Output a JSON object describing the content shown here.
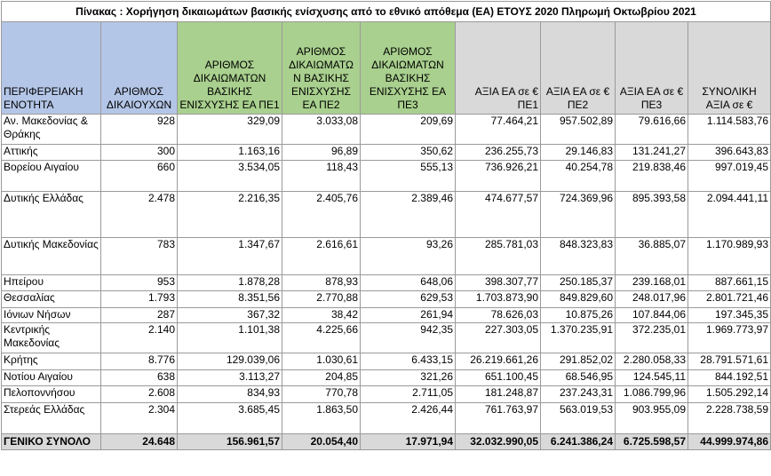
{
  "title": "Πίνακας   : Χορήγηση δικαιωμάτων βασικής ενίσχυσης από το εθνικό απόθεμα (ΕΑ) ΕΤΟΥΣ 2020 Πληρωμή Οκτωβρίου 2021",
  "headers": [
    "ΠΕΡΙΦΕΡΕΙΑΚΗ ΕΝΟΤΗΤΑ",
    "ΑΡΙΘΜΟΣ ΔΙΚΑΙΟΥΧΩΝ",
    "ΑΡΙΘΜΟΣ ΔΙΚΑΙΩΜΑΤΩΝ ΒΑΣΙΚΗΣ ΕΝΙΣΧΥΣΗΣ ΕΑ ΠΕ1",
    "ΑΡΙΘΜΟΣ ΔΙΚΑΙΩΜΑΤΩ Ν ΒΑΣΙΚΗΣ ΕΝΙΣΧΥΣΗΣ ΕΑ ΠΕ2",
    "ΑΡΙΘΜΟΣ ΔΙΚΑΙΩΜΑΤΩΝ ΒΑΣΙΚΗΣ ΕΝΙΣΧΥΣΗΣ ΕΑ ΠΕ3",
    "ΑΞΙΑ ΕΑ σε € ΠΕ1",
    "ΑΞΙΑ ΕΑ σε € ΠΕ2",
    "ΑΞΙΑ ΕΑ σε € ΠΕ3",
    "ΣΥΝΟΛΙΚΗ ΑΞΙΑ σε €"
  ],
  "rows": [
    {
      "name": "Αν. Μακεδονίας & Θράκης",
      "v": [
        "928",
        "329,09",
        "3.033,08",
        "209,69",
        "77.464,21",
        "957.502,89",
        "79.616,66",
        "1.114.583,76"
      ]
    },
    {
      "name": "Αττικής",
      "v": [
        "300",
        "1.163,16",
        "96,89",
        "350,62",
        "236.255,73",
        "29.146,83",
        "131.241,27",
        "396.643,83"
      ]
    },
    {
      "name": "Βορείου Αιγαίου",
      "v": [
        "660",
        "3.534,05",
        "118,43",
        "555,13",
        "736.926,21",
        "40.254,78",
        "219.838,46",
        "997.019,45"
      ]
    },
    {
      "name": "Δυτικής Ελλάδας",
      "v": [
        "2.478",
        "2.216,35",
        "2.405,76",
        "2.389,46",
        "474.677,57",
        "724.369,96",
        "895.393,58",
        "2.094.441,11"
      ]
    },
    {
      "name": "Δυτικής Μακεδονίας",
      "v": [
        "783",
        "1.347,67",
        "2.616,61",
        "93,26",
        "285.781,03",
        "848.323,83",
        "36.885,07",
        "1.170.989,93"
      ]
    },
    {
      "name": "Ηπείρου",
      "v": [
        "953",
        "1.878,28",
        "878,93",
        "648,06",
        "398.307,77",
        "250.185,37",
        "239.168,01",
        "887.661,15"
      ]
    },
    {
      "name": "Θεσσαλίας",
      "v": [
        "1.793",
        "8.351,56",
        "2.770,88",
        "629,53",
        "1.703.873,90",
        "849.829,60",
        "248.017,96",
        "2.801.721,46"
      ]
    },
    {
      "name": "Ιόνιων Νήσων",
      "v": [
        "287",
        "367,32",
        "38,42",
        "261,94",
        "78.626,03",
        "10.875,26",
        "107.844,06",
        "197.345,35"
      ]
    },
    {
      "name": "Κεντρικής Μακεδονίας",
      "v": [
        "2.140",
        "1.101,38",
        "4.225,66",
        "942,35",
        "227.303,05",
        "1.370.235,91",
        "372.235,01",
        "1.969.773,97"
      ]
    },
    {
      "name": "Κρήτης",
      "v": [
        "8.776",
        "129.039,06",
        "1.030,61",
        "6.433,15",
        "26.219.661,26",
        "291.852,02",
        "2.280.058,33",
        "28.791.571,61"
      ]
    },
    {
      "name": "Νοτίου Αιγαίου",
      "v": [
        "638",
        "3.113,27",
        "204,85",
        "321,26",
        "651.100,45",
        "68.546,95",
        "124.545,11",
        "844.192,51"
      ]
    },
    {
      "name": "Πελοποννήσου",
      "v": [
        "2.608",
        "834,93",
        "770,78",
        "2.711,05",
        "181.248,87",
        "237.243,31",
        "1.086.799,96",
        "1.505.292,14"
      ]
    },
    {
      "name": "Στερεάς Ελλάδας",
      "v": [
        "2.304",
        "3.685,45",
        "1.863,50",
        "2.426,44",
        "761.763,97",
        "563.019,53",
        "903.955,09",
        "2.228.738,59"
      ]
    }
  ],
  "total": {
    "name": "ΓΕΝΙΚΟ ΣΥΝΟΛΟ",
    "v": [
      "24.648",
      "156.961,57",
      "20.054,40",
      "17.971,94",
      "32.032.990,05",
      "6.241.386,24",
      "6.725.598,57",
      "44.999.974,86"
    ]
  }
}
